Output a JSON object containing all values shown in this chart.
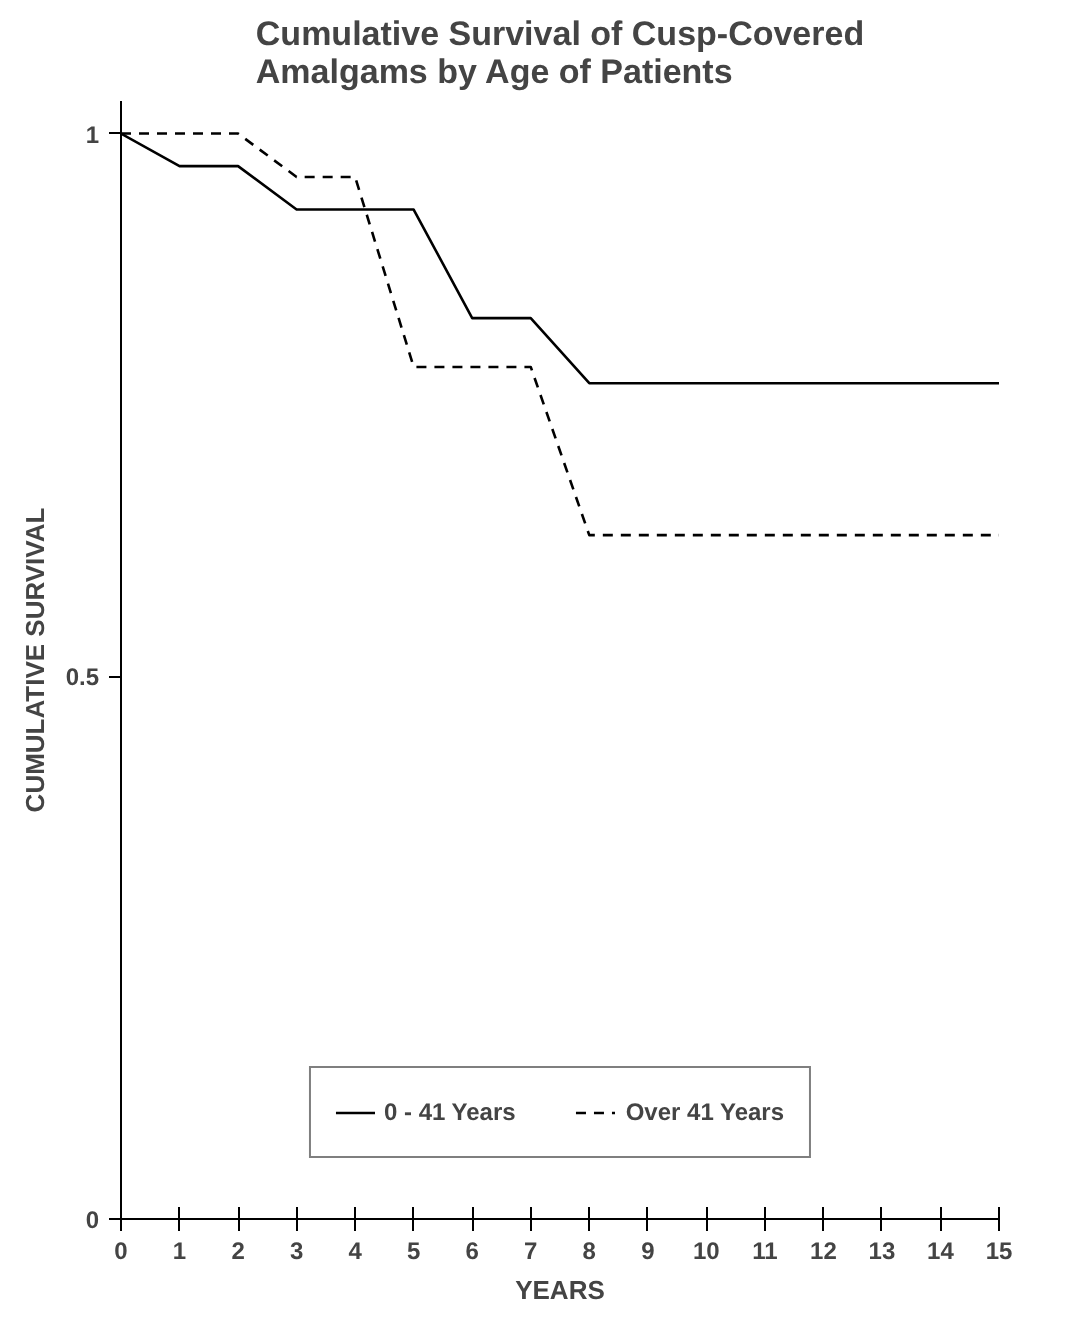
{
  "chart_data": {
    "type": "line",
    "title": "Cumulative Survival of Cusp-Covered Amalgams by Age of Patients",
    "xlabel": "YEARS",
    "ylabel": "CUMULATIVE SURVIVAL",
    "series": [
      {
        "name": "0 - 41 Years",
        "color": "#000000",
        "line_style": "solid",
        "x": [
          0,
          1,
          2,
          3,
          5,
          6,
          7,
          8,
          15
        ],
        "values": [
          1,
          0.97,
          0.97,
          0.93,
          0.93,
          0.83,
          0.83,
          0.77,
          0.77
        ]
      },
      {
        "name": "Over 41 Years",
        "color": "#000000",
        "line_style": "dashed",
        "x": [
          0,
          2,
          3,
          4,
          5,
          7,
          8,
          15
        ],
        "values": [
          1,
          1,
          0.96,
          0.96,
          0.785,
          0.785,
          0.63,
          0.63
        ]
      }
    ],
    "xlim": [
      0,
      15
    ],
    "ylim": [
      0,
      1.03
    ],
    "xticks": [
      0,
      1,
      2,
      3,
      4,
      5,
      6,
      7,
      8,
      9,
      10,
      11,
      12,
      13,
      14,
      15
    ],
    "yticks": [
      0,
      0.5,
      1
    ],
    "grid": false,
    "legend": "bottom",
    "marker": "none"
  }
}
